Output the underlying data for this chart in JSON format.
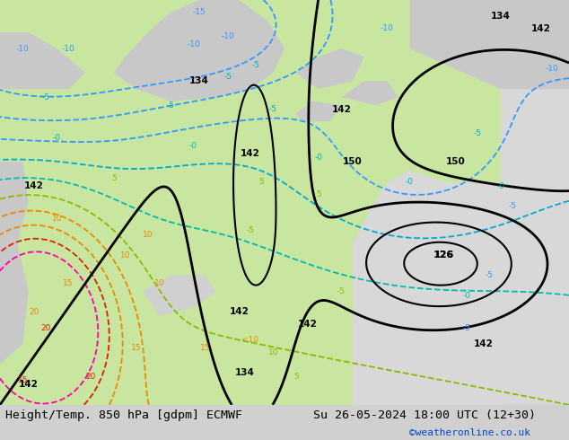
{
  "title_left": "Height/Temp. 850 hPa [gdpm] ECMWF",
  "title_right": "Su 26-05-2024 18:00 UTC (12+30)",
  "credit": "©weatheronline.co.uk",
  "bg_color": "#c8e6a0",
  "gray_bg": "#c8c8c8",
  "black": "#000000",
  "blue": "#3399ff",
  "cyan": "#00bbcc",
  "yellow_green": "#99cc00",
  "dark_green": "#00aa44",
  "orange": "#ee8800",
  "red": "#dd2200",
  "magenta": "#ff00aa",
  "title_fontsize": 9.5,
  "credit_color": "#0044cc"
}
